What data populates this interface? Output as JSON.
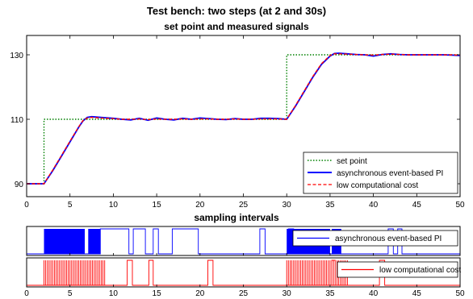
{
  "figure_title": "Test bench: two steps (at 2 and 30s)",
  "chart_data": [
    {
      "type": "line",
      "title": "set point and measured signals",
      "xlabel": "",
      "ylabel": "",
      "xlim": [
        0,
        50
      ],
      "ylim": [
        86,
        136
      ],
      "xticks": [
        0,
        5,
        10,
        15,
        20,
        25,
        30,
        35,
        40,
        45,
        50
      ],
      "yticks": [
        90,
        110,
        130
      ],
      "grid": false,
      "legend_position": "bottom-right",
      "series": [
        {
          "name": "set point",
          "color": "#008000",
          "style": "dotted",
          "x": [
            0,
            2,
            2,
            30,
            30,
            50
          ],
          "y": [
            90,
            90,
            110,
            110,
            130,
            130
          ]
        },
        {
          "name": "asynchronous event-based PI",
          "color": "#0000ff",
          "style": "solid",
          "x": [
            0,
            2,
            3,
            4,
            5,
            6,
            6.5,
            7,
            7.5,
            8,
            9,
            10,
            11,
            12,
            13,
            14,
            15,
            16,
            17,
            18,
            19,
            20,
            21,
            22,
            23,
            24,
            25,
            26,
            27,
            28,
            29,
            30,
            31,
            32,
            33,
            34,
            35,
            35.5,
            36,
            37,
            38,
            39,
            40,
            41,
            42,
            43,
            44,
            45,
            46,
            47,
            48,
            49,
            50
          ],
          "y": [
            90,
            90,
            94,
            98.5,
            103,
            107.5,
            109.5,
            110.6,
            110.8,
            110.7,
            110.5,
            110.3,
            110,
            109.8,
            110.3,
            109.7,
            110.4,
            110,
            109.8,
            110.3,
            110,
            110.4,
            110.2,
            110,
            109.9,
            110.2,
            110,
            110,
            110.3,
            110.3,
            110.2,
            110,
            114,
            118.5,
            123,
            127,
            129.6,
            130.4,
            130.5,
            130.3,
            130.1,
            130,
            129.6,
            130.1,
            130.3,
            130.1,
            130,
            130,
            130,
            130,
            130,
            129.9,
            129.8
          ]
        },
        {
          "name": "low computational cost",
          "color": "#ff0000",
          "style": "dashed",
          "x": [
            0,
            2,
            3,
            4,
            5,
            6,
            6.5,
            7,
            7.5,
            8,
            9,
            10,
            11,
            12,
            13,
            14,
            15,
            16,
            17,
            18,
            19,
            20,
            21,
            22,
            23,
            24,
            25,
            26,
            27,
            28,
            29,
            30,
            31,
            32,
            33,
            34,
            35,
            35.5,
            36,
            37,
            38,
            39,
            40,
            41,
            42,
            43,
            44,
            45,
            46,
            47,
            48,
            49,
            50
          ],
          "y": [
            90,
            90,
            94.2,
            98.7,
            103.2,
            107.6,
            109.6,
            110.4,
            110.6,
            110.5,
            110.3,
            110.2,
            110,
            110,
            110.1,
            109.9,
            110.1,
            110,
            110,
            110.1,
            110,
            110.1,
            110.1,
            110,
            110,
            110.1,
            110,
            110,
            110.1,
            110.1,
            110.1,
            110,
            114.2,
            118.7,
            123.2,
            127.2,
            129.8,
            130.3,
            130.3,
            130.2,
            130.1,
            130,
            129.9,
            130.1,
            130.2,
            130.1,
            130,
            130,
            130,
            130,
            130,
            130,
            129.9
          ]
        }
      ]
    },
    {
      "type": "line",
      "title": "sampling intervals",
      "xlabel": "",
      "ylabel": "",
      "xlim": [
        0,
        50
      ],
      "legend_position": "right",
      "series": [
        {
          "name": "asynchronous event-based PI",
          "color": "#0000ff",
          "style": "solid",
          "dense_ranges": [
            [
              2,
              6.7
            ],
            [
              7.1,
              8.5
            ],
            [
              30,
              35
            ],
            [
              35.2,
              36.3
            ]
          ],
          "pulses": [
            [
              8.5,
              11.8
            ],
            [
              12.3,
              13.7
            ],
            [
              14.6,
              15.2
            ],
            [
              16.8,
              19.8
            ],
            [
              26.9,
              27.5
            ],
            [
              30.2,
              30.8
            ],
            [
              41.7,
              42.3
            ],
            [
              42.8,
              43.3
            ]
          ]
        },
        {
          "name": "low computational cost",
          "color": "#ff0000",
          "style": "solid",
          "dense_ranges": [
            [
              2,
              9
            ],
            [
              30,
              37
            ]
          ],
          "pulses": [
            [
              11.6,
              12.2
            ],
            [
              14.1,
              14.6
            ],
            [
              20.9,
              21.5
            ],
            [
              35.2,
              35.6
            ],
            [
              40.7,
              41.3
            ]
          ]
        }
      ]
    }
  ]
}
